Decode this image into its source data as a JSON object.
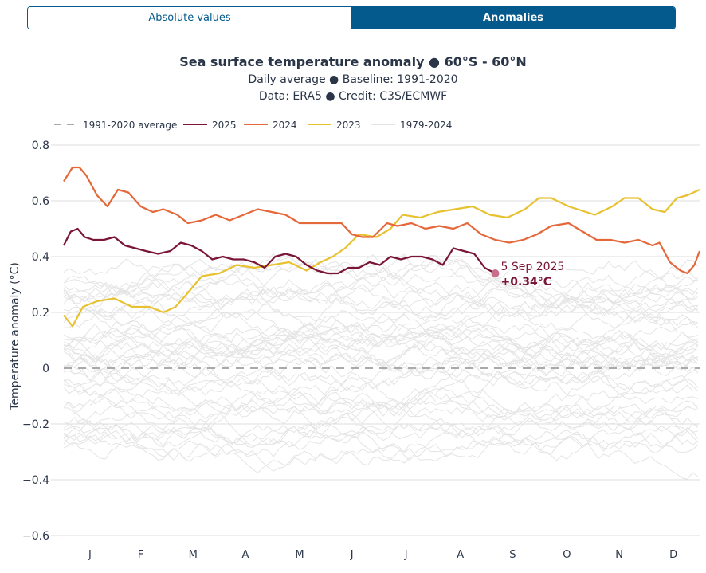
{
  "toggle": {
    "options": [
      "Absolute values",
      "Anomalies"
    ],
    "selected": "Anomalies"
  },
  "chart_data": {
    "type": "line",
    "title": "Sea surface temperature anomaly ● 60°S - 60°N",
    "subtitle_lines": [
      "Daily average ● Baseline: 1991-2020",
      "Data: ERA5 ● Credit: C3S/ECMWF"
    ],
    "xlabel": "",
    "ylabel": "Temperature anomaly (°C)",
    "x_unit": "day of year",
    "xlim": [
      1,
      365
    ],
    "ylim": [
      -0.6,
      0.8
    ],
    "yticks": [
      -0.6,
      -0.4,
      -0.2,
      0,
      0.2,
      0.4,
      0.6,
      0.8
    ],
    "ytick_labels": [
      "−0.6",
      "−0.4",
      "−0.2",
      "0",
      "0.2",
      "0.4",
      "0.6",
      "0.8"
    ],
    "xtick_labels": [
      "J",
      "F",
      "M",
      "A",
      "M",
      "J",
      "J",
      "A",
      "S",
      "O",
      "N",
      "D"
    ],
    "xtick_days": [
      16,
      45,
      75,
      105,
      136,
      166,
      197,
      228,
      258,
      289,
      319,
      350
    ],
    "grid": true,
    "legend_position": "top-left",
    "legend": [
      {
        "label": "1991-2020 average",
        "color": "#aaaaaa",
        "style": "dashed"
      },
      {
        "label": "2025",
        "color": "#7b1535",
        "style": "solid"
      },
      {
        "label": "2024",
        "color": "#e5683a",
        "style": "solid"
      },
      {
        "label": "2023",
        "color": "#e8c130",
        "style": "solid"
      },
      {
        "label": "1979-2024",
        "color": "#e4e4e4",
        "style": "solid"
      }
    ],
    "series": [
      {
        "name": "1991-2020 average",
        "color": "#aaaaaa",
        "style": "dashed",
        "x": [
          1,
          365
        ],
        "y": [
          0,
          0
        ]
      },
      {
        "name": "1979-2024",
        "color": "#e4e4e4",
        "style": "solid",
        "note": "background ensemble of past years"
      },
      {
        "name": "2023",
        "color": "#e8c130",
        "style": "solid",
        "x": [
          1,
          6,
          12,
          20,
          30,
          40,
          50,
          58,
          65,
          72,
          80,
          90,
          100,
          110,
          120,
          130,
          140,
          148,
          155,
          162,
          170,
          180,
          188,
          195,
          205,
          215,
          225,
          235,
          245,
          255,
          265,
          273,
          280,
          290,
          300,
          305,
          315,
          322,
          330,
          338,
          345,
          352,
          358,
          365
        ],
        "y": [
          0.19,
          0.15,
          0.22,
          0.24,
          0.25,
          0.22,
          0.22,
          0.2,
          0.22,
          0.27,
          0.33,
          0.34,
          0.37,
          0.36,
          0.37,
          0.38,
          0.35,
          0.38,
          0.4,
          0.43,
          0.48,
          0.47,
          0.5,
          0.55,
          0.54,
          0.56,
          0.57,
          0.58,
          0.55,
          0.54,
          0.57,
          0.61,
          0.61,
          0.58,
          0.56,
          0.55,
          0.58,
          0.61,
          0.61,
          0.57,
          0.56,
          0.61,
          0.62,
          0.64
        ]
      },
      {
        "name": "2024",
        "color": "#e5683a",
        "style": "solid",
        "x": [
          1,
          6,
          10,
          14,
          20,
          26,
          32,
          38,
          45,
          52,
          58,
          66,
          72,
          80,
          88,
          96,
          104,
          112,
          120,
          128,
          136,
          144,
          152,
          160,
          166,
          172,
          178,
          186,
          192,
          200,
          208,
          216,
          224,
          232,
          240,
          248,
          256,
          264,
          272,
          280,
          290,
          298,
          306,
          314,
          322,
          330,
          338,
          342,
          348,
          354,
          358,
          362,
          365
        ],
        "y": [
          0.67,
          0.72,
          0.72,
          0.69,
          0.62,
          0.58,
          0.64,
          0.63,
          0.58,
          0.56,
          0.57,
          0.55,
          0.52,
          0.53,
          0.55,
          0.53,
          0.55,
          0.57,
          0.56,
          0.55,
          0.52,
          0.52,
          0.52,
          0.52,
          0.48,
          0.47,
          0.47,
          0.52,
          0.51,
          0.52,
          0.5,
          0.51,
          0.5,
          0.52,
          0.48,
          0.46,
          0.45,
          0.46,
          0.48,
          0.51,
          0.52,
          0.49,
          0.46,
          0.46,
          0.45,
          0.46,
          0.44,
          0.45,
          0.38,
          0.35,
          0.34,
          0.37,
          0.42
        ]
      },
      {
        "name": "2025",
        "color": "#7b1535",
        "style": "solid",
        "x": [
          1,
          5,
          9,
          13,
          18,
          24,
          30,
          36,
          42,
          48,
          55,
          62,
          68,
          74,
          80,
          86,
          92,
          98,
          104,
          110,
          116,
          122,
          128,
          134,
          140,
          146,
          152,
          158,
          164,
          170,
          176,
          182,
          188,
          194,
          200,
          206,
          212,
          218,
          224,
          230,
          236,
          242,
          248
        ],
        "y": [
          0.44,
          0.49,
          0.5,
          0.47,
          0.46,
          0.46,
          0.47,
          0.44,
          0.43,
          0.42,
          0.41,
          0.42,
          0.45,
          0.44,
          0.42,
          0.39,
          0.4,
          0.39,
          0.39,
          0.38,
          0.36,
          0.4,
          0.41,
          0.4,
          0.37,
          0.35,
          0.34,
          0.34,
          0.36,
          0.36,
          0.38,
          0.37,
          0.4,
          0.39,
          0.4,
          0.4,
          0.39,
          0.37,
          0.43,
          0.42,
          0.41,
          0.36,
          0.34
        ]
      }
    ],
    "annotation": {
      "date": "5 Sep 2025",
      "value": "+0.34°C",
      "x": 248,
      "y": 0.34,
      "color": "#7b1535",
      "marker_color": "#c96f8a"
    }
  }
}
